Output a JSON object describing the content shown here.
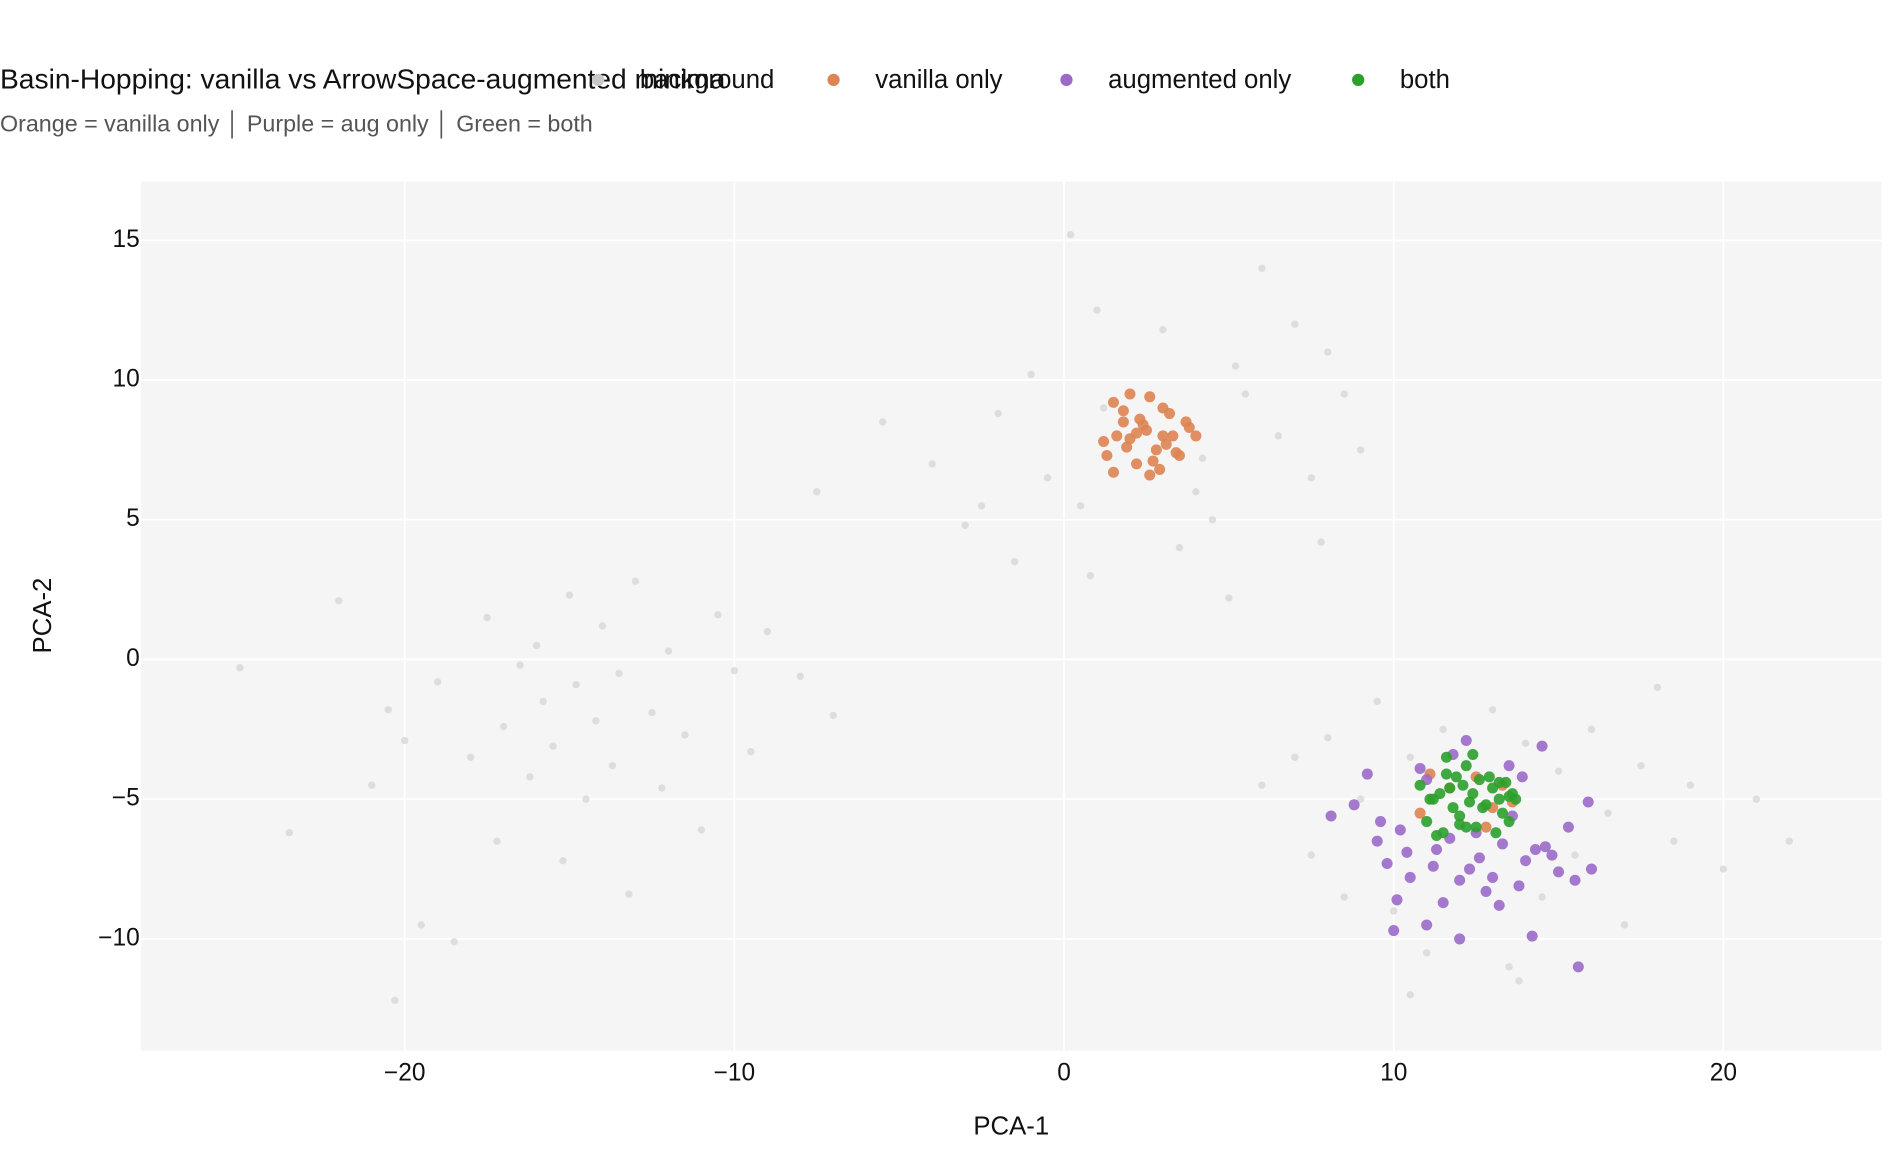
{
  "chart_data": {
    "type": "scatter",
    "title": "Basin-Hopping: vanilla vs ArrowSpace-augmented minima",
    "subtitle": "Orange = vanilla only  │  Purple = aug only  │  Green = both",
    "x_label": "PCA-1",
    "y_label": "PCA-2",
    "xlim": [
      -28,
      24.8
    ],
    "ylim": [
      -14,
      17.1
    ],
    "xticks": [
      {
        "value": -20,
        "label": "−20"
      },
      {
        "value": -10,
        "label": "−10"
      },
      0,
      10,
      20
    ],
    "yticks": [
      {
        "value": -10,
        "label": "−10"
      },
      {
        "value": -5,
        "label": "−5"
      },
      0,
      5,
      10,
      15
    ],
    "grid": true,
    "legend": "top",
    "series": [
      {
        "name": "background",
        "color": "#c8c8c8",
        "x": [
          -25,
          -23.5,
          -22,
          -21,
          -20.5,
          -20,
          -19.5,
          -19,
          -18.5,
          -18,
          -17.5,
          -17.2,
          -17,
          -16.5,
          -16.2,
          -16,
          -15.8,
          -15.5,
          -15.2,
          -15,
          -14.8,
          -14.5,
          -14.2,
          -14,
          -13.7,
          -13.5,
          -13.2,
          -13,
          -12.5,
          -12.2,
          -12,
          -11.5,
          -11,
          -10.5,
          -10,
          -9.5,
          -9,
          -8,
          -7,
          -20.3,
          -7.5,
          -5.5,
          -4,
          -3,
          -2,
          -1.5,
          -1,
          -0.5,
          0.2,
          0.5,
          1,
          1.2,
          3,
          3.5,
          4,
          4.5,
          5,
          5.5,
          6,
          6.5,
          7,
          7.5,
          8,
          8.5,
          9,
          -2.5,
          0.8,
          4.2,
          7.8,
          5.2,
          6,
          7,
          7.5,
          8,
          8.5,
          9,
          9.5,
          10,
          10.5,
          11,
          11.5,
          12,
          13,
          13.5,
          14,
          14.5,
          15,
          15.5,
          16,
          16.5,
          17,
          17.5,
          18,
          18.5,
          19,
          20,
          21,
          22,
          10.5,
          13.8
        ],
        "values": [
          -0.3,
          -6.2,
          2.1,
          -4.5,
          -1.8,
          -2.9,
          -9.5,
          -0.8,
          -10.1,
          -3.5,
          1.5,
          -6.5,
          -2.4,
          -0.2,
          -4.2,
          0.5,
          -1.5,
          -3.1,
          -7.2,
          2.3,
          -0.9,
          -5.0,
          -2.2,
          1.2,
          -3.8,
          -0.5,
          -8.4,
          2.8,
          -1.9,
          -4.6,
          0.3,
          -2.7,
          -6.1,
          1.6,
          -0.4,
          -3.3,
          1.0,
          -0.6,
          -2.0,
          -12.2,
          6,
          8.5,
          7,
          4.8,
          8.8,
          3.5,
          10.2,
          6.5,
          15.2,
          5.5,
          12.5,
          9,
          11.8,
          4,
          6,
          5,
          2.2,
          9.5,
          14,
          8,
          12,
          6.5,
          11,
          9.5,
          7.5,
          5.5,
          3,
          7.2,
          4.2,
          10.5,
          -4.5,
          -3.5,
          -7,
          -2.8,
          -8.5,
          -5,
          -1.5,
          -9,
          -3.5,
          -10.5,
          -2.5,
          -6,
          -1.8,
          -11,
          -3,
          -8.5,
          -4,
          -7,
          -2.5,
          -5.5,
          -9.5,
          -3.8,
          -1,
          -6.5,
          -4.5,
          -7.5,
          -5,
          -6.5,
          -12,
          -11.5
        ]
      },
      {
        "name": "vanilla only",
        "color": "#dd8452",
        "x": [
          1.2,
          1.5,
          1.8,
          2.0,
          2.2,
          2.5,
          2.8,
          3.0,
          3.2,
          3.5,
          3.8,
          4.0,
          1.3,
          1.6,
          1.9,
          2.3,
          2.6,
          2.9,
          3.3,
          3.7,
          1.5,
          2.0,
          2.4,
          2.7,
          3.1,
          3.4,
          2.2,
          2.6,
          1.8,
          3.0,
          10.8,
          11.1,
          12.5,
          13.0,
          13.3,
          12.8,
          13.6,
          11.7
        ],
        "values": [
          7.8,
          9.2,
          8.5,
          9.5,
          7.0,
          8.2,
          7.5,
          9.0,
          8.8,
          7.3,
          8.3,
          8.0,
          7.3,
          8.0,
          7.6,
          8.6,
          9.4,
          6.8,
          8.0,
          8.5,
          6.7,
          7.9,
          8.4,
          7.1,
          7.7,
          7.4,
          8.1,
          6.6,
          8.9,
          8.0,
          -5.5,
          -4.1,
          -4.2,
          -5.3,
          -4.5,
          -6,
          -5.1,
          -4.6
        ]
      },
      {
        "name": "augmented only",
        "color": "#9b6ac9",
        "x": [
          8.1,
          8.8,
          9.2,
          9.5,
          9.8,
          10.0,
          10.2,
          10.5,
          10.8,
          11.0,
          11.3,
          11.5,
          11.8,
          12.0,
          12.3,
          12.5,
          12.8,
          13.0,
          13.3,
          13.5,
          13.8,
          14.0,
          14.3,
          14.5,
          14.8,
          15.0,
          15.3,
          15.6,
          15.9,
          16.0,
          10.1,
          11.0,
          12.0,
          13.2,
          14.2,
          15.5,
          9.6,
          11.7,
          12.6,
          13.9,
          10.4,
          12.2,
          14.6,
          11.2,
          13.6
        ],
        "values": [
          -5.6,
          -5.2,
          -4.1,
          -6.5,
          -7.3,
          -9.7,
          -6.1,
          -7.8,
          -3.9,
          -9.5,
          -6.8,
          -8.7,
          -3.4,
          -10,
          -7.5,
          -6.2,
          -8.3,
          -7.8,
          -6.6,
          -3.8,
          -8.1,
          -7.2,
          -6.8,
          -3.1,
          -7.0,
          -7.6,
          -6.0,
          -11,
          -5.1,
          -7.5,
          -8.6,
          -4.3,
          -7.9,
          -8.8,
          -9.9,
          -7.9,
          -5.8,
          -6.4,
          -7.1,
          -4.2,
          -6.9,
          -2.9,
          -6.7,
          -7.4,
          -5.6
        ]
      },
      {
        "name": "both",
        "color": "#2ca02c",
        "x": [
          10.8,
          11.0,
          11.2,
          11.4,
          11.5,
          11.6,
          11.8,
          11.9,
          12.0,
          12.1,
          12.2,
          12.3,
          12.4,
          12.5,
          12.6,
          12.8,
          13.0,
          13.1,
          13.2,
          13.3,
          13.4,
          13.5,
          13.6,
          13.7,
          11.3,
          11.7,
          12.0,
          12.4,
          12.9,
          13.2,
          11.1,
          12.2,
          12.7,
          13.5,
          11.6
        ],
        "values": [
          -4.5,
          -5.8,
          -5.0,
          -4.8,
          -6.2,
          -3.5,
          -5.3,
          -4.2,
          -5.6,
          -4.5,
          -3.8,
          -5.1,
          -3.4,
          -6.0,
          -4.3,
          -5.2,
          -4.6,
          -6.2,
          -4.4,
          -5.5,
          -4.4,
          -5.8,
          -4.8,
          -5.0,
          -6.3,
          -4.6,
          -5.9,
          -4.8,
          -4.2,
          -5.0,
          -5.0,
          -6.0,
          -5.3,
          -4.9,
          -4.1
        ]
      }
    ]
  }
}
